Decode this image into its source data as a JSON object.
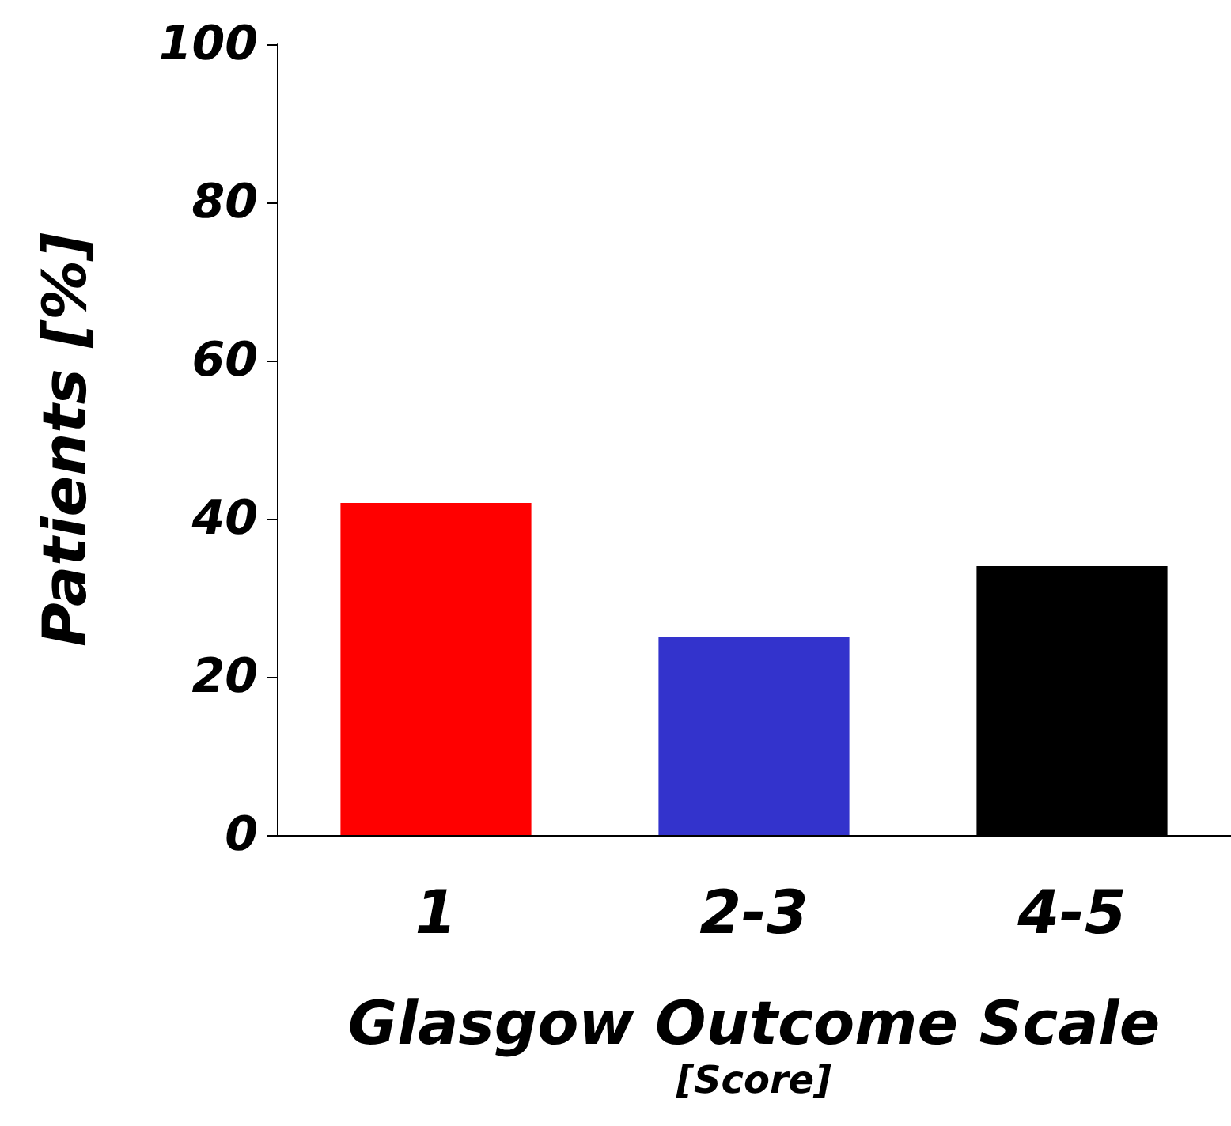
{
  "chart_data": {
    "type": "bar",
    "categories": [
      "1",
      "2-3",
      "4-5"
    ],
    "colors": [
      "#ff0000",
      "#3333cc",
      "#000000"
    ],
    "values": [
      42,
      25,
      34
    ],
    "xlabel": "Glasgow Outcome Scale\n[Score]",
    "ylabel": "Patients [%]",
    "ylim": [
      0,
      100
    ],
    "yticks": [
      0,
      20,
      40,
      60,
      80,
      100
    ]
  }
}
